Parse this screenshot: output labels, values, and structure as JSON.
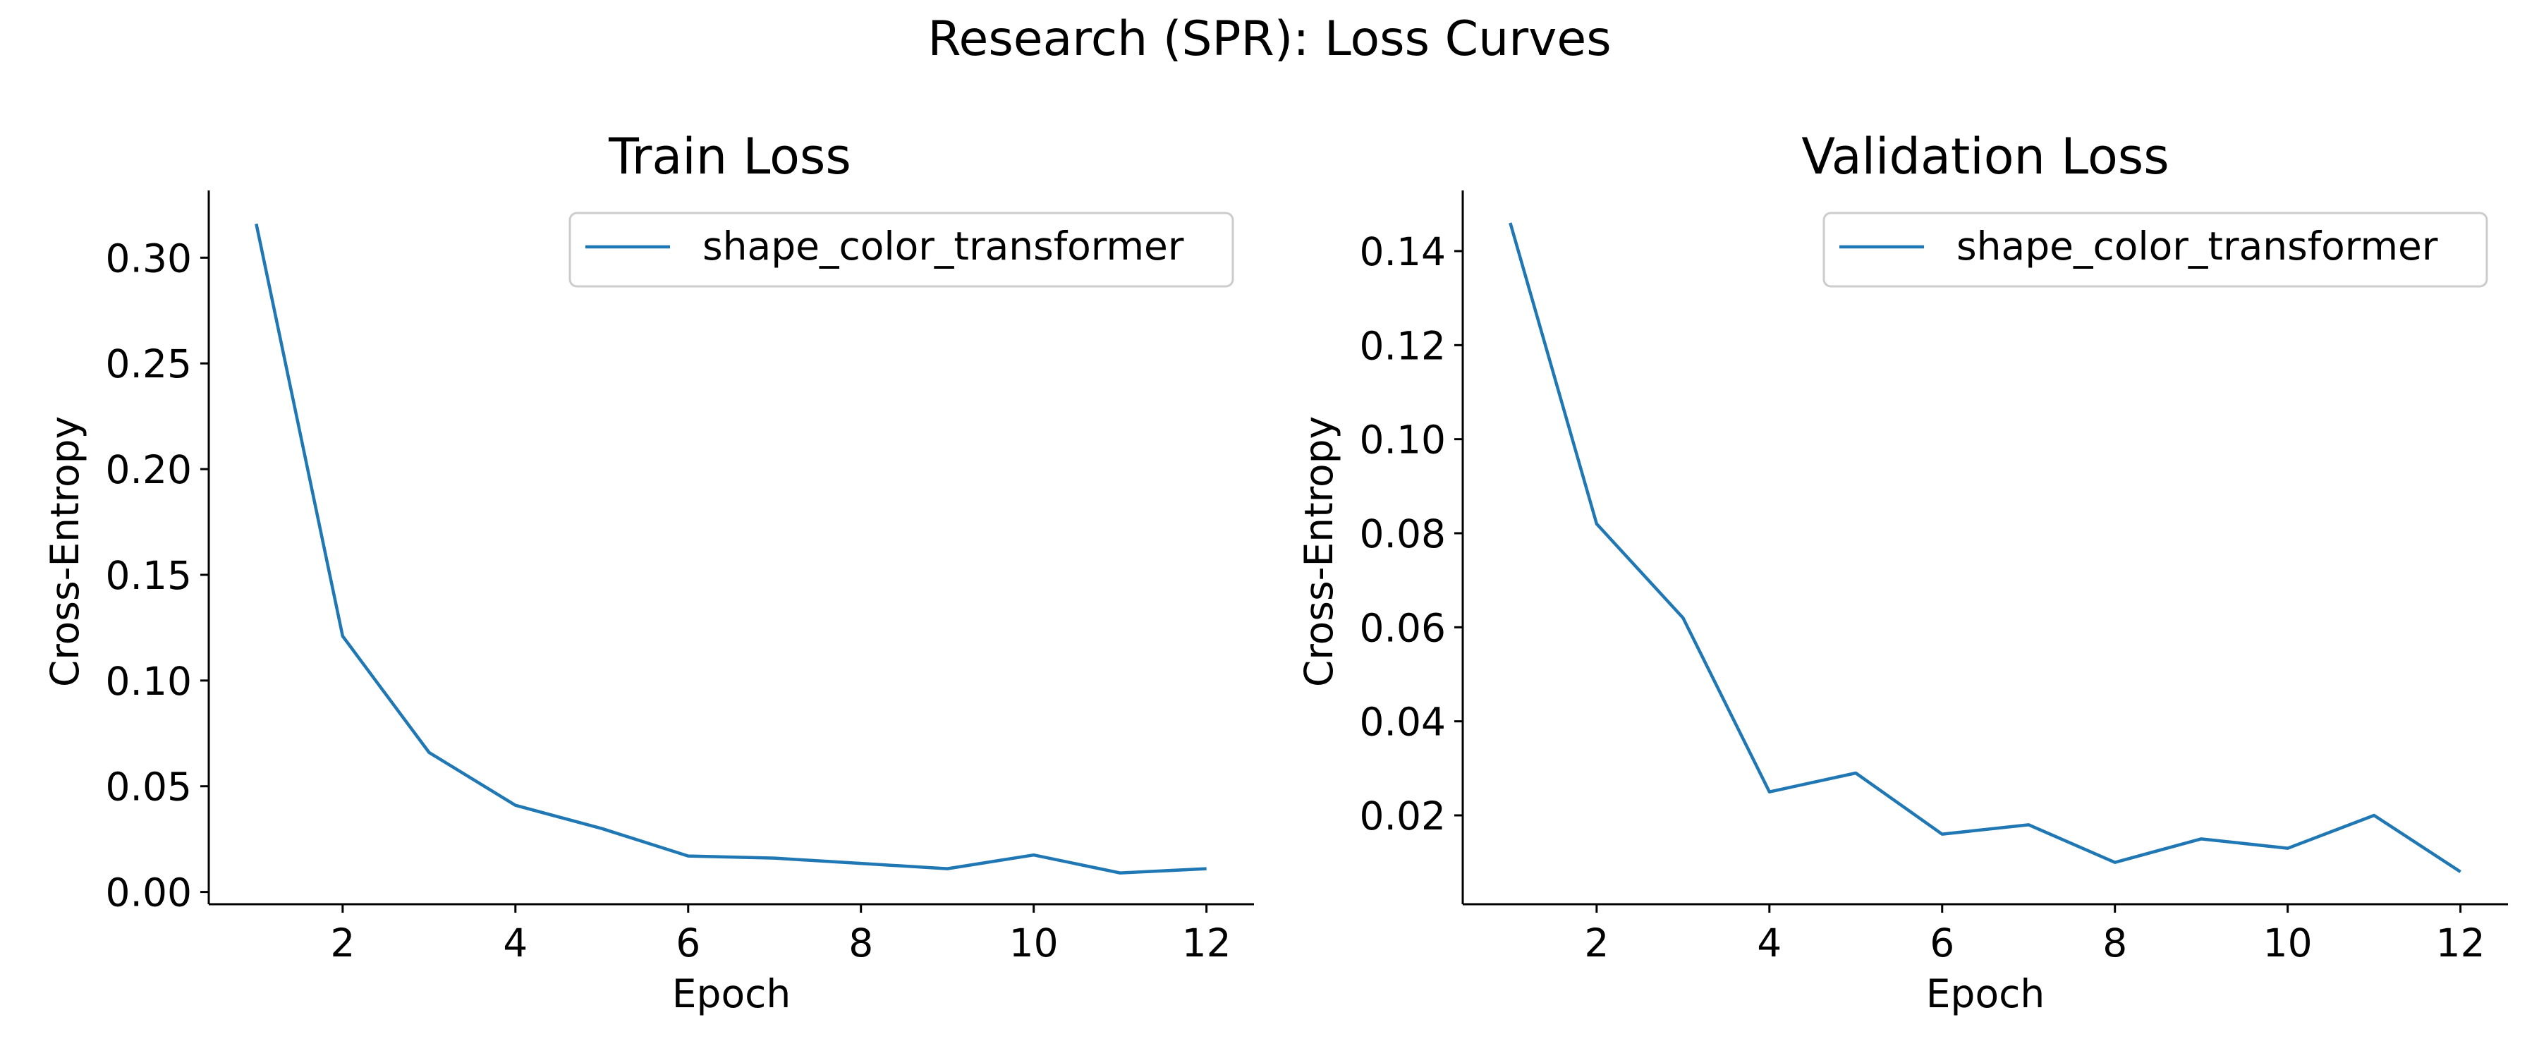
{
  "suptitle": "Research (SPR): Loss Curves",
  "colors": {
    "series": "#1f77b4"
  },
  "chart_data": [
    {
      "type": "line",
      "title": "Train Loss",
      "xlabel": "Epoch",
      "ylabel": "Cross-Entropy",
      "x": [
        1,
        2,
        3,
        4,
        5,
        6,
        7,
        8,
        9,
        10,
        11,
        12
      ],
      "series": [
        {
          "name": "shape_color_transformer",
          "values": [
            0.316,
            0.121,
            0.066,
            0.041,
            0.03,
            0.017,
            0.016,
            0.0135,
            0.011,
            0.0175,
            0.009,
            0.011
          ]
        }
      ],
      "xlim": [
        0.45,
        12.55
      ],
      "ylim": [
        -0.0058,
        0.3318
      ],
      "xticks": [
        2,
        4,
        6,
        8,
        10,
        12
      ],
      "xtick_labels": [
        "2",
        "4",
        "6",
        "8",
        "10",
        "12"
      ],
      "yticks": [
        0.0,
        0.05,
        0.1,
        0.15,
        0.2,
        0.25,
        0.3
      ],
      "ytick_labels": [
        "0.00",
        "0.05",
        "0.10",
        "0.15",
        "0.20",
        "0.25",
        "0.30"
      ],
      "legend": "top-right",
      "grid": false
    },
    {
      "type": "line",
      "title": "Validation Loss",
      "xlabel": "Epoch",
      "ylabel": "Cross-Entropy",
      "x": [
        1,
        2,
        3,
        4,
        5,
        6,
        7,
        8,
        9,
        10,
        11,
        12
      ],
      "series": [
        {
          "name": "shape_color_transformer",
          "values": [
            0.146,
            0.082,
            0.062,
            0.025,
            0.029,
            0.016,
            0.018,
            0.01,
            0.015,
            0.013,
            0.02,
            0.008
          ]
        }
      ],
      "xlim": [
        0.45,
        12.55
      ],
      "ylim": [
        0.0011,
        0.1529
      ],
      "xticks": [
        2,
        4,
        6,
        8,
        10,
        12
      ],
      "xtick_labels": [
        "2",
        "4",
        "6",
        "8",
        "10",
        "12"
      ],
      "yticks": [
        0.02,
        0.04,
        0.06,
        0.08,
        0.1,
        0.12,
        0.14
      ],
      "ytick_labels": [
        "0.02",
        "0.04",
        "0.06",
        "0.08",
        "0.10",
        "0.12",
        "0.14"
      ],
      "legend": "top-right",
      "grid": false
    }
  ]
}
